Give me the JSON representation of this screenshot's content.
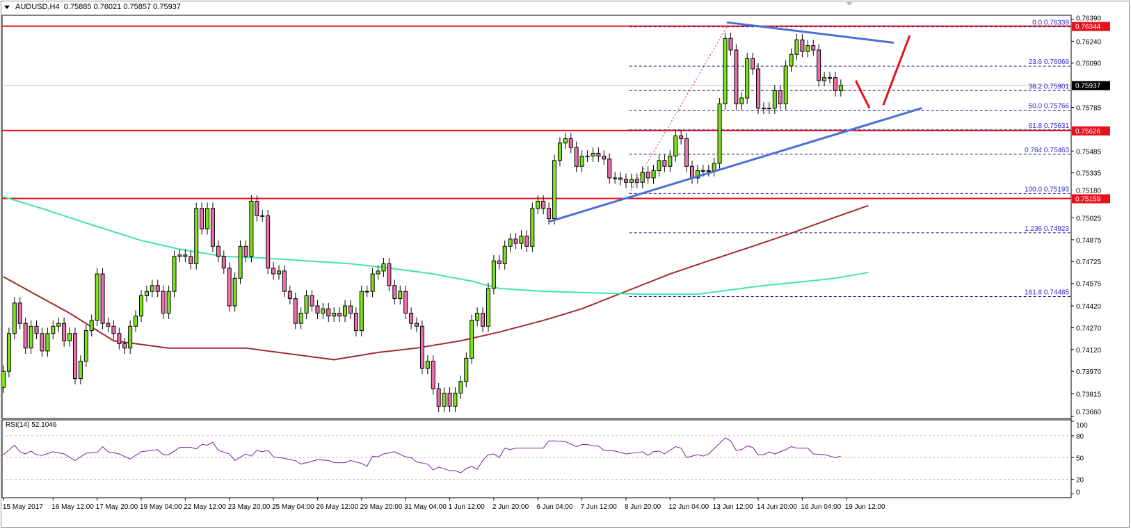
{
  "header": {
    "symbol": "AUDUSD,H4",
    "ohlc": "0.75885 0.76021 0.75857 0.75937"
  },
  "rsi_label": "RSI(14) 52.1046",
  "colors": {
    "bull": "#7fe01e",
    "bear": "#ec6fab",
    "outline": "#000000",
    "hline": "#e8101a",
    "trend": "#4a6fd8",
    "fib": "#1a1a8c",
    "fib_text": "#2a2ad0",
    "ma_red": "#a42a2a",
    "ma_green": "#3fe6a6",
    "rsi": "#7a1fa0",
    "current": "#bbbbbb"
  },
  "chart_data": [
    {
      "type": "candlestick",
      "title": "AUDUSD,H4",
      "ylim": [
        0.7366,
        0.7639
      ],
      "y_ticks": [
        "0.76390",
        "0.76240",
        "0.76090",
        "0.75785",
        "0.75485",
        "0.75335",
        "0.75180",
        "0.75025",
        "0.74875",
        "0.74725",
        "0.74575",
        "0.74420",
        "0.74270",
        "0.74120",
        "0.73970",
        "0.73815",
        "0.73660"
      ],
      "x_labels": [
        {
          "i": 0,
          "label": "15 May 2017"
        },
        {
          "i": 9,
          "label": "16 May 12:00"
        },
        {
          "i": 17,
          "label": "17 May 20:00"
        },
        {
          "i": 25,
          "label": "19 May 04:00"
        },
        {
          "i": 33,
          "label": "22 May 12:00"
        },
        {
          "i": 41,
          "label": "23 May 20:00"
        },
        {
          "i": 49,
          "label": "25 May 04:00"
        },
        {
          "i": 57,
          "label": "26 May 12:00"
        },
        {
          "i": 65,
          "label": "29 May 20:00"
        },
        {
          "i": 73,
          "label": "31 May 04:00"
        },
        {
          "i": 81,
          "label": "1 Jun 12:00"
        },
        {
          "i": 89,
          "label": "2 Jun 20:00"
        },
        {
          "i": 97,
          "label": "6 Jun 04:00"
        },
        {
          "i": 105,
          "label": "7 Jun 12:00"
        },
        {
          "i": 113,
          "label": "8 Jun 20:00"
        },
        {
          "i": 121,
          "label": "12 Jun 04:00"
        },
        {
          "i": 129,
          "label": "13 Jun 12:00"
        },
        {
          "i": 137,
          "label": "14 Jun 20:00"
        },
        {
          "i": 145,
          "label": "16 Jun 04:00"
        },
        {
          "i": 153,
          "label": "19 Jun 12:00"
        }
      ],
      "first_open": 0.7386,
      "closes": [
        0.7397,
        0.7423,
        0.7444,
        0.743,
        0.7413,
        0.7428,
        0.7423,
        0.7411,
        0.7423,
        0.7428,
        0.743,
        0.7418,
        0.7423,
        0.7392,
        0.7404,
        0.7425,
        0.7432,
        0.7464,
        0.743,
        0.7428,
        0.7423,
        0.7416,
        0.7413,
        0.7428,
        0.7435,
        0.7449,
        0.7452,
        0.7456,
        0.7452,
        0.7437,
        0.7452,
        0.7476,
        0.7477,
        0.7476,
        0.7471,
        0.7509,
        0.7495,
        0.7509,
        0.7483,
        0.7476,
        0.7468,
        0.7442,
        0.7461,
        0.7483,
        0.7476,
        0.7514,
        0.7504,
        0.7504,
        0.7468,
        0.7464,
        0.7466,
        0.7452,
        0.7447,
        0.743,
        0.7437,
        0.7449,
        0.7442,
        0.7437,
        0.744,
        0.7435,
        0.7437,
        0.7435,
        0.7442,
        0.7437,
        0.7425,
        0.7452,
        0.7452,
        0.7464,
        0.7466,
        0.7471,
        0.7456,
        0.7447,
        0.7452,
        0.7437,
        0.743,
        0.7428,
        0.7399,
        0.7404,
        0.7385,
        0.7373,
        0.7382,
        0.7373,
        0.7382,
        0.739,
        0.7406,
        0.7432,
        0.7437,
        0.7428,
        0.7454,
        0.7473,
        0.7471,
        0.7483,
        0.7488,
        0.7485,
        0.749,
        0.7483,
        0.7509,
        0.7514,
        0.7509,
        0.7502,
        0.7542,
        0.7554,
        0.7557,
        0.7551,
        0.7538,
        0.7545,
        0.7545,
        0.7547,
        0.7545,
        0.7543,
        0.753,
        0.753,
        0.7529,
        0.7527,
        0.7529,
        0.7527,
        0.7534,
        0.753,
        0.7535,
        0.7542,
        0.7538,
        0.7545,
        0.7559,
        0.7557,
        0.7538,
        0.753,
        0.7535,
        0.7535,
        0.7535,
        0.754,
        0.7581,
        0.7626,
        0.7618,
        0.7581,
        0.7585,
        0.7612,
        0.7605,
        0.7578,
        0.7578,
        0.7578,
        0.759,
        0.7581,
        0.7607,
        0.7615,
        0.7625,
        0.7617,
        0.7621,
        0.7618,
        0.7597,
        0.7599,
        0.7599,
        0.759,
        0.75937
      ],
      "moving_averages": [
        {
          "color": "ma_red",
          "points": [
            [
              0,
              0.7462
            ],
            [
              12,
              0.7437
            ],
            [
              20,
              0.7418
            ],
            [
              30,
              0.7413
            ],
            [
              44,
              0.7413
            ],
            [
              52,
              0.7409
            ],
            [
              60,
              0.7405
            ],
            [
              68,
              0.741
            ],
            [
              75,
              0.7413
            ],
            [
              83,
              0.7418
            ],
            [
              90,
              0.7424
            ],
            [
              98,
              0.7432
            ],
            [
              105,
              0.744
            ],
            [
              113,
              0.7452
            ],
            [
              121,
              0.7464
            ],
            [
              128,
              0.7473
            ],
            [
              136,
              0.7483
            ],
            [
              143,
              0.7492
            ],
            [
              151,
              0.7503
            ],
            [
              157,
              0.7511
            ]
          ]
        },
        {
          "color": "ma_green",
          "points": [
            [
              0,
              0.7517
            ],
            [
              7,
              0.7509
            ],
            [
              15,
              0.7499
            ],
            [
              25,
              0.7487
            ],
            [
              32,
              0.7481
            ],
            [
              40,
              0.7476
            ],
            [
              47,
              0.7475
            ],
            [
              55,
              0.7473
            ],
            [
              63,
              0.7471
            ],
            [
              70,
              0.7468
            ],
            [
              78,
              0.7464
            ],
            [
              85,
              0.7459
            ],
            [
              90,
              0.7454
            ],
            [
              98,
              0.7452
            ],
            [
              107,
              0.7451
            ],
            [
              116,
              0.745
            ],
            [
              126,
              0.745
            ],
            [
              132,
              0.7453
            ],
            [
              138,
              0.7456
            ],
            [
              146,
              0.7459
            ],
            [
              151,
              0.7461
            ],
            [
              157,
              0.7465
            ]
          ]
        }
      ],
      "horizontal_lines": [
        {
          "price": 0.76344,
          "label": "0.76344"
        },
        {
          "price": 0.75626,
          "label": "0.75626"
        },
        {
          "price": 0.75159,
          "label": "0.75159"
        }
      ],
      "current_price": {
        "price": 0.75937,
        "label": "0.75937"
      },
      "fibonacci": {
        "from": [
          113.6,
          0.75193
        ],
        "to": [
          131.3,
          0.76339
        ],
        "levels": [
          {
            "price": 0.76339,
            "label": "0.0 0.76339"
          },
          {
            "price": 0.76069,
            "label": "23.6 0.76069"
          },
          {
            "price": 0.75901,
            "label": "38.2 0.75901"
          },
          {
            "price": 0.75766,
            "label": "50.0 0.75766"
          },
          {
            "price": 0.75631,
            "label": "61.8 0.75631"
          },
          {
            "price": 0.75463,
            "label": "0.764 0.75463"
          },
          {
            "price": 0.75193,
            "label": "100.0 0.75193"
          },
          {
            "price": 0.74923,
            "label": "1.236 0.74923"
          },
          {
            "price": 0.74485,
            "label": "161.8 0.74485"
          }
        ]
      },
      "trendlines": [
        {
          "color": "trend",
          "from": [
            131.3,
            0.7637
          ],
          "to": [
            161.6,
            0.7623
          ]
        },
        {
          "color": "trend",
          "from": [
            99.1,
            0.75
          ],
          "to": [
            166.7,
            0.7578
          ]
        },
        {
          "color": "hline",
          "from": [
            154.7,
            0.7597
          ],
          "to": [
            157.2,
            0.7578
          ]
        },
        {
          "color": "hline",
          "from": [
            159.7,
            0.758
          ],
          "to": [
            164.5,
            0.7628
          ]
        }
      ]
    },
    {
      "type": "line",
      "title": "RSI(14) 52.1046",
      "ylim": [
        0,
        100
      ],
      "y_ticks": [
        "100",
        "80",
        "50",
        "20",
        "0"
      ],
      "levels": [
        80,
        50,
        20
      ],
      "points": [
        [
          0,
          54
        ],
        [
          2,
          67
        ],
        [
          3,
          58
        ],
        [
          4,
          55
        ],
        [
          5,
          59
        ],
        [
          6,
          54
        ],
        [
          7,
          53
        ],
        [
          9,
          58
        ],
        [
          11,
          55
        ],
        [
          13,
          46
        ],
        [
          15,
          56
        ],
        [
          17,
          57
        ],
        [
          18,
          65
        ],
        [
          19,
          58
        ],
        [
          21,
          55
        ],
        [
          23,
          48
        ],
        [
          25,
          58
        ],
        [
          28,
          61
        ],
        [
          29,
          54
        ],
        [
          30,
          54
        ],
        [
          32,
          64
        ],
        [
          34,
          64
        ],
        [
          35,
          62
        ],
        [
          36,
          68
        ],
        [
          37,
          67
        ],
        [
          38,
          71
        ],
        [
          39,
          60
        ],
        [
          41,
          55
        ],
        [
          42,
          46
        ],
        [
          44,
          55
        ],
        [
          45,
          52
        ],
        [
          46,
          60
        ],
        [
          47,
          58
        ],
        [
          48,
          60
        ],
        [
          49,
          51
        ],
        [
          51,
          49
        ],
        [
          52,
          47
        ],
        [
          53,
          46
        ],
        [
          54,
          41
        ],
        [
          57,
          47
        ],
        [
          59,
          46
        ],
        [
          60,
          43
        ],
        [
          62,
          43
        ],
        [
          63,
          46
        ],
        [
          65,
          42
        ],
        [
          66,
          38
        ],
        [
          67,
          52
        ],
        [
          68,
          51
        ],
        [
          69,
          55
        ],
        [
          71,
          58
        ],
        [
          73,
          51
        ],
        [
          74,
          50
        ],
        [
          75,
          44
        ],
        [
          77,
          41
        ],
        [
          78,
          33
        ],
        [
          79,
          37
        ],
        [
          81,
          32
        ],
        [
          82,
          32
        ],
        [
          83,
          29
        ],
        [
          84,
          35
        ],
        [
          85,
          38
        ],
        [
          86,
          34
        ],
        [
          87,
          46
        ],
        [
          88,
          54
        ],
        [
          89,
          55
        ],
        [
          90,
          50
        ],
        [
          91,
          63
        ],
        [
          92,
          61
        ],
        [
          93,
          63
        ],
        [
          96,
          63
        ],
        [
          98,
          63
        ],
        [
          99,
          73
        ],
        [
          100,
          73
        ],
        [
          102,
          72
        ],
        [
          104,
          65
        ],
        [
          105,
          68
        ],
        [
          106,
          68
        ],
        [
          107,
          66
        ],
        [
          108,
          66
        ],
        [
          109,
          60
        ],
        [
          111,
          59
        ],
        [
          113,
          55
        ],
        [
          115,
          57
        ],
        [
          116,
          58
        ],
        [
          117,
          53
        ],
        [
          118,
          58
        ],
        [
          119,
          59
        ],
        [
          120,
          55
        ],
        [
          122,
          65
        ],
        [
          123,
          63
        ],
        [
          124,
          50
        ],
        [
          126,
          54
        ],
        [
          127,
          52
        ],
        [
          128,
          55
        ],
        [
          131,
          77
        ],
        [
          132,
          73
        ],
        [
          133,
          60
        ],
        [
          134,
          61
        ],
        [
          135,
          66
        ],
        [
          136,
          64
        ],
        [
          137,
          54
        ],
        [
          138,
          54
        ],
        [
          139,
          58
        ],
        [
          140,
          55
        ],
        [
          142,
          61
        ],
        [
          143,
          65
        ],
        [
          144,
          63
        ],
        [
          146,
          63
        ],
        [
          147,
          55
        ],
        [
          149,
          54
        ],
        [
          151,
          50
        ],
        [
          152,
          52
        ]
      ]
    }
  ]
}
